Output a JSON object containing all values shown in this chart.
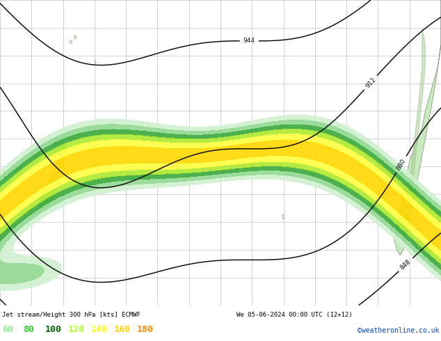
{
  "title_left": "Jet stream/Height 300 hPa [kts] ECMWF",
  "title_right": "We 05-06-2024 00:00 UTC (12+12)",
  "credit": "©weatheronline.co.uk",
  "legend_values": [
    60,
    80,
    100,
    120,
    140,
    160,
    180
  ],
  "legend_text_colors": [
    "#90ee90",
    "#32cd32",
    "#006400",
    "#adff2f",
    "#ffff00",
    "#ffd700",
    "#ff8c00"
  ],
  "ocean_color": "#e8e8e8",
  "land_color_light": "#c8eabc",
  "land_color_dark": "#a0c890",
  "coast_color": "#808878",
  "grid_color": "#c0c0c0",
  "contour_color": "#111111",
  "fill_levels": [
    60,
    80,
    100,
    120,
    140,
    160,
    180,
    220
  ],
  "fill_colors": [
    "#d0f0d0",
    "#90d890",
    "#3aaa3a",
    "#aee830",
    "#ffff40",
    "#ffd700",
    "#ff8c00"
  ],
  "figsize": [
    6.34,
    4.9
  ],
  "dpi": 100,
  "lon_min": 155,
  "lon_max": 295,
  "lat_min": -65,
  "lat_max": -10,
  "contour_levels": [
    848,
    880,
    912,
    944
  ],
  "contour_lw": 1.1
}
